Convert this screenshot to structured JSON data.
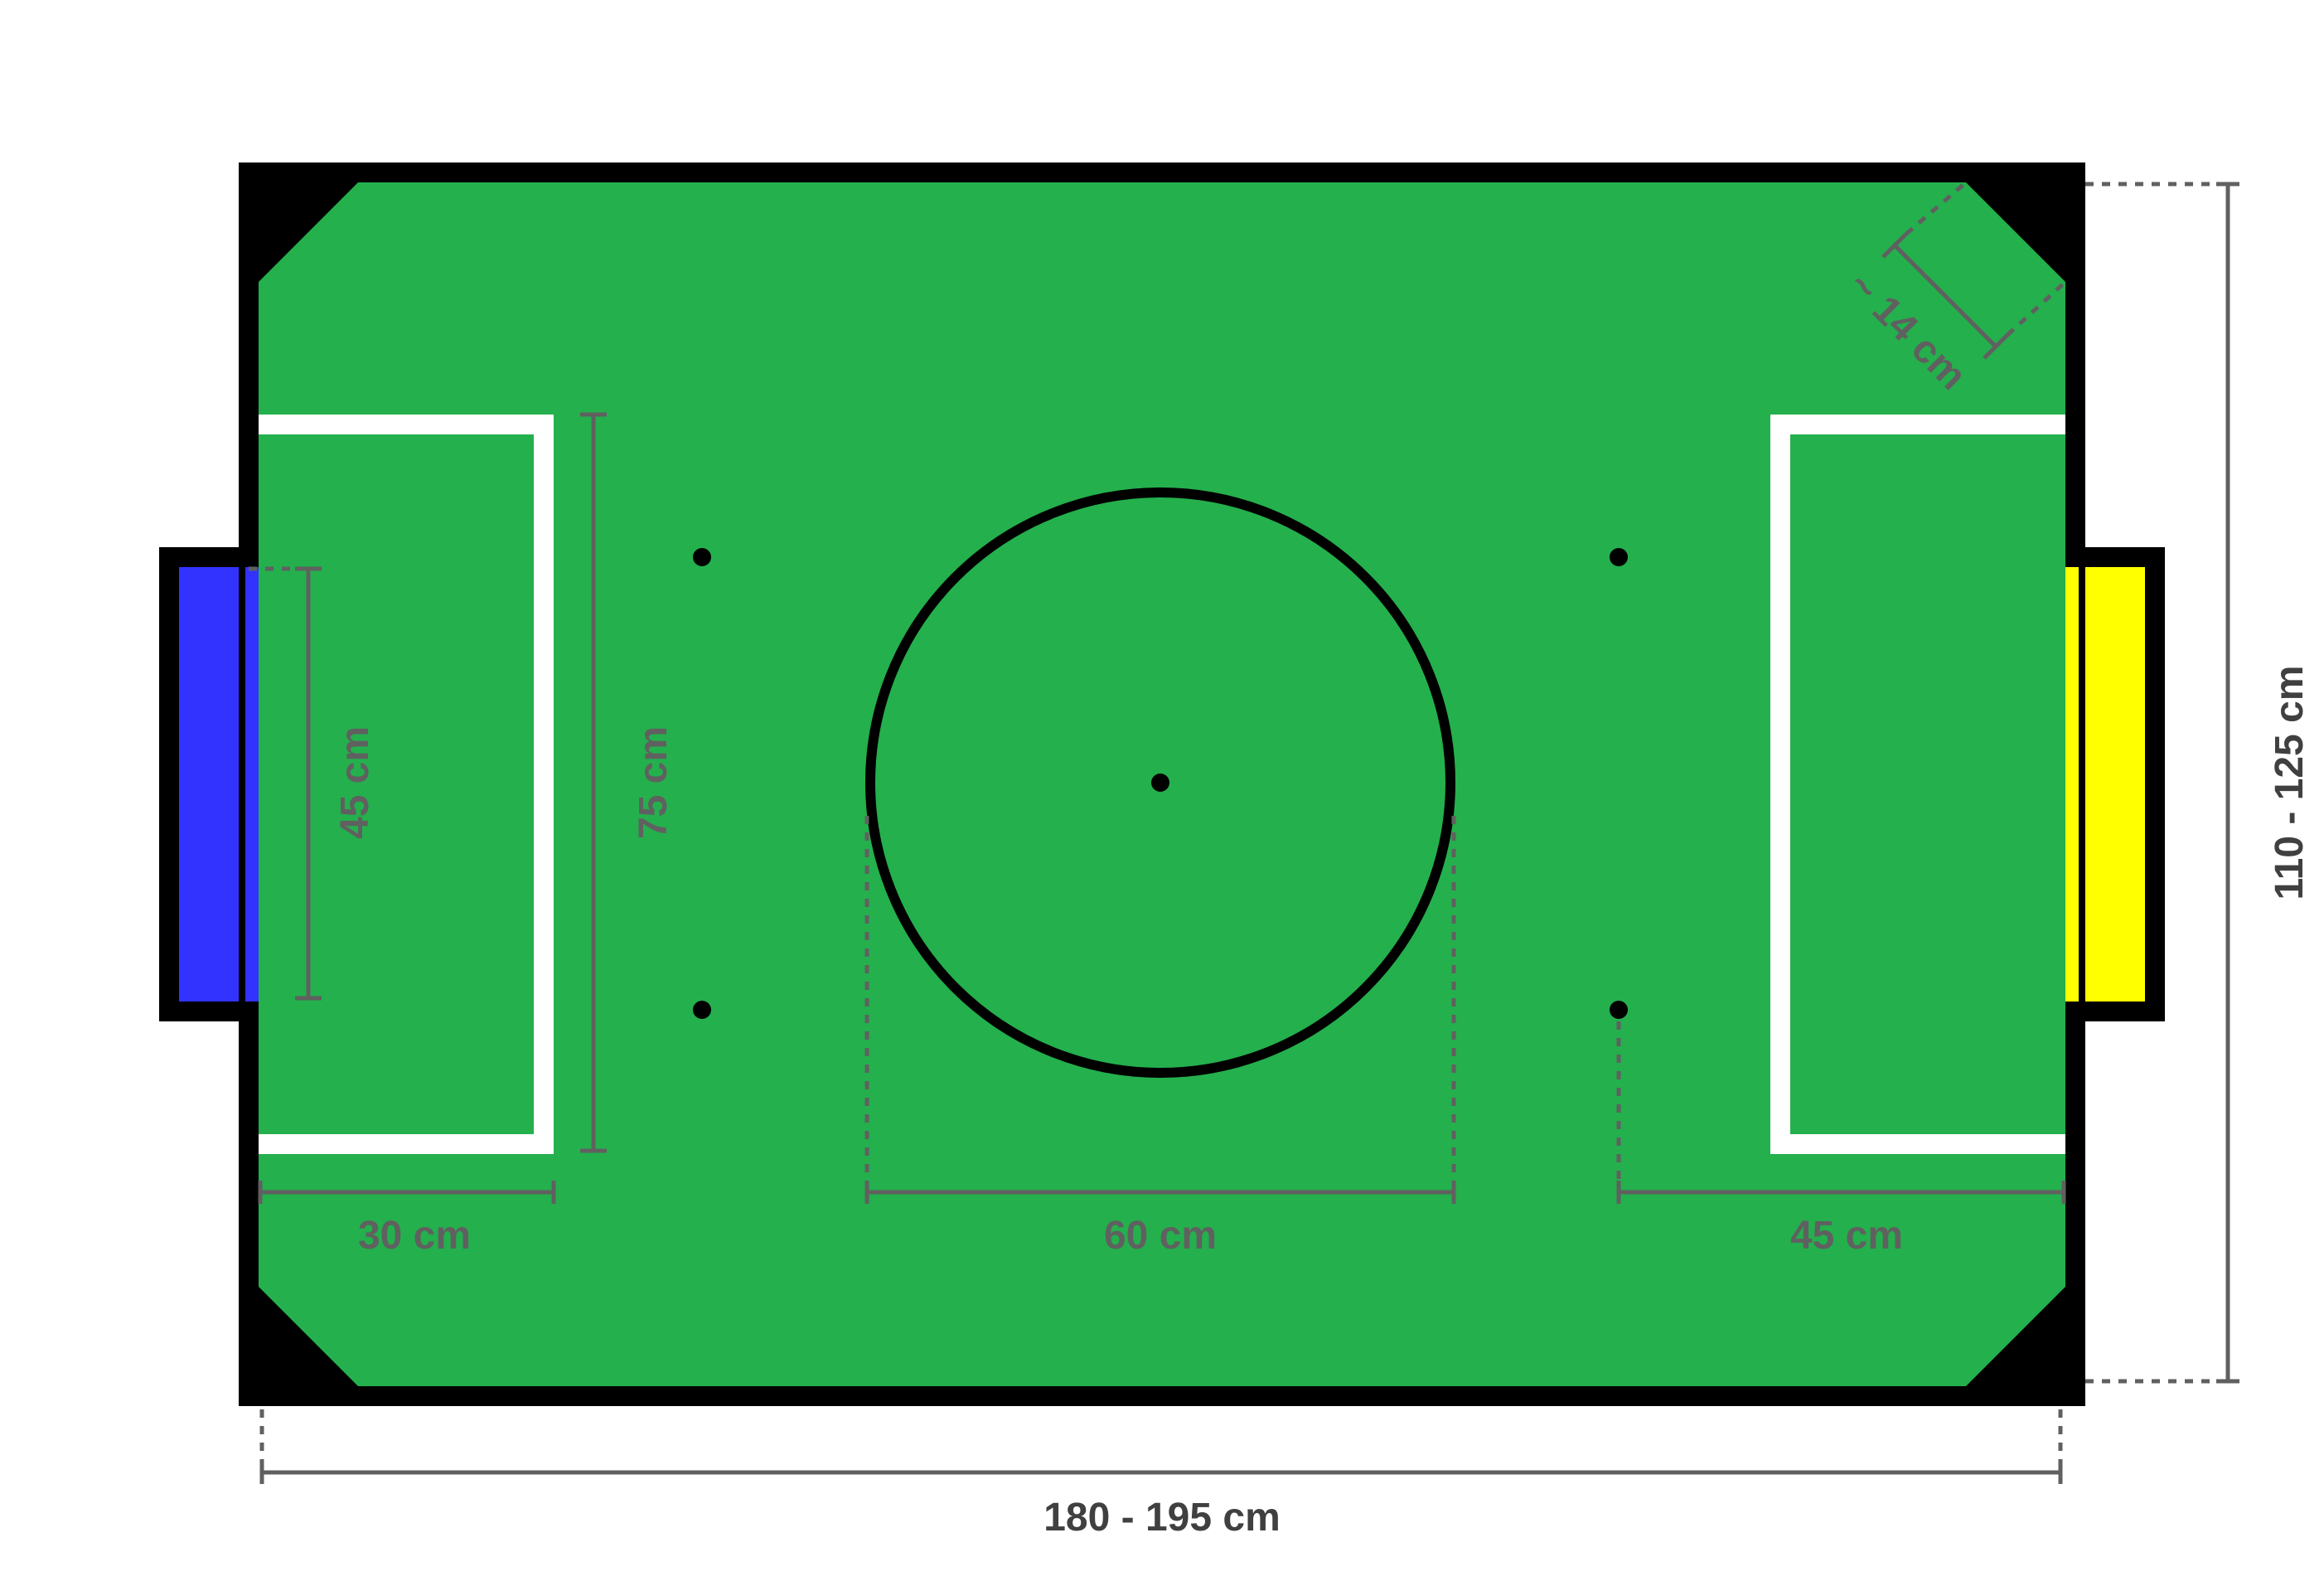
{
  "colors": {
    "field": "#24B04D",
    "border": "#000000",
    "lines": "#FFFFFF",
    "dimension": "#606060",
    "goal_left": "#3333FF",
    "goal_right": "#FFFF00"
  },
  "labels": {
    "goal_width": "45 cm",
    "penalty_area_width": "75 cm",
    "penalty_area_depth": "30 cm",
    "center_circle": "60 cm",
    "neutral_spot_distance": "45 cm",
    "corner": "~ 14 cm",
    "field_length": "180 - 195 cm",
    "field_width": "110 - 125 cm"
  }
}
